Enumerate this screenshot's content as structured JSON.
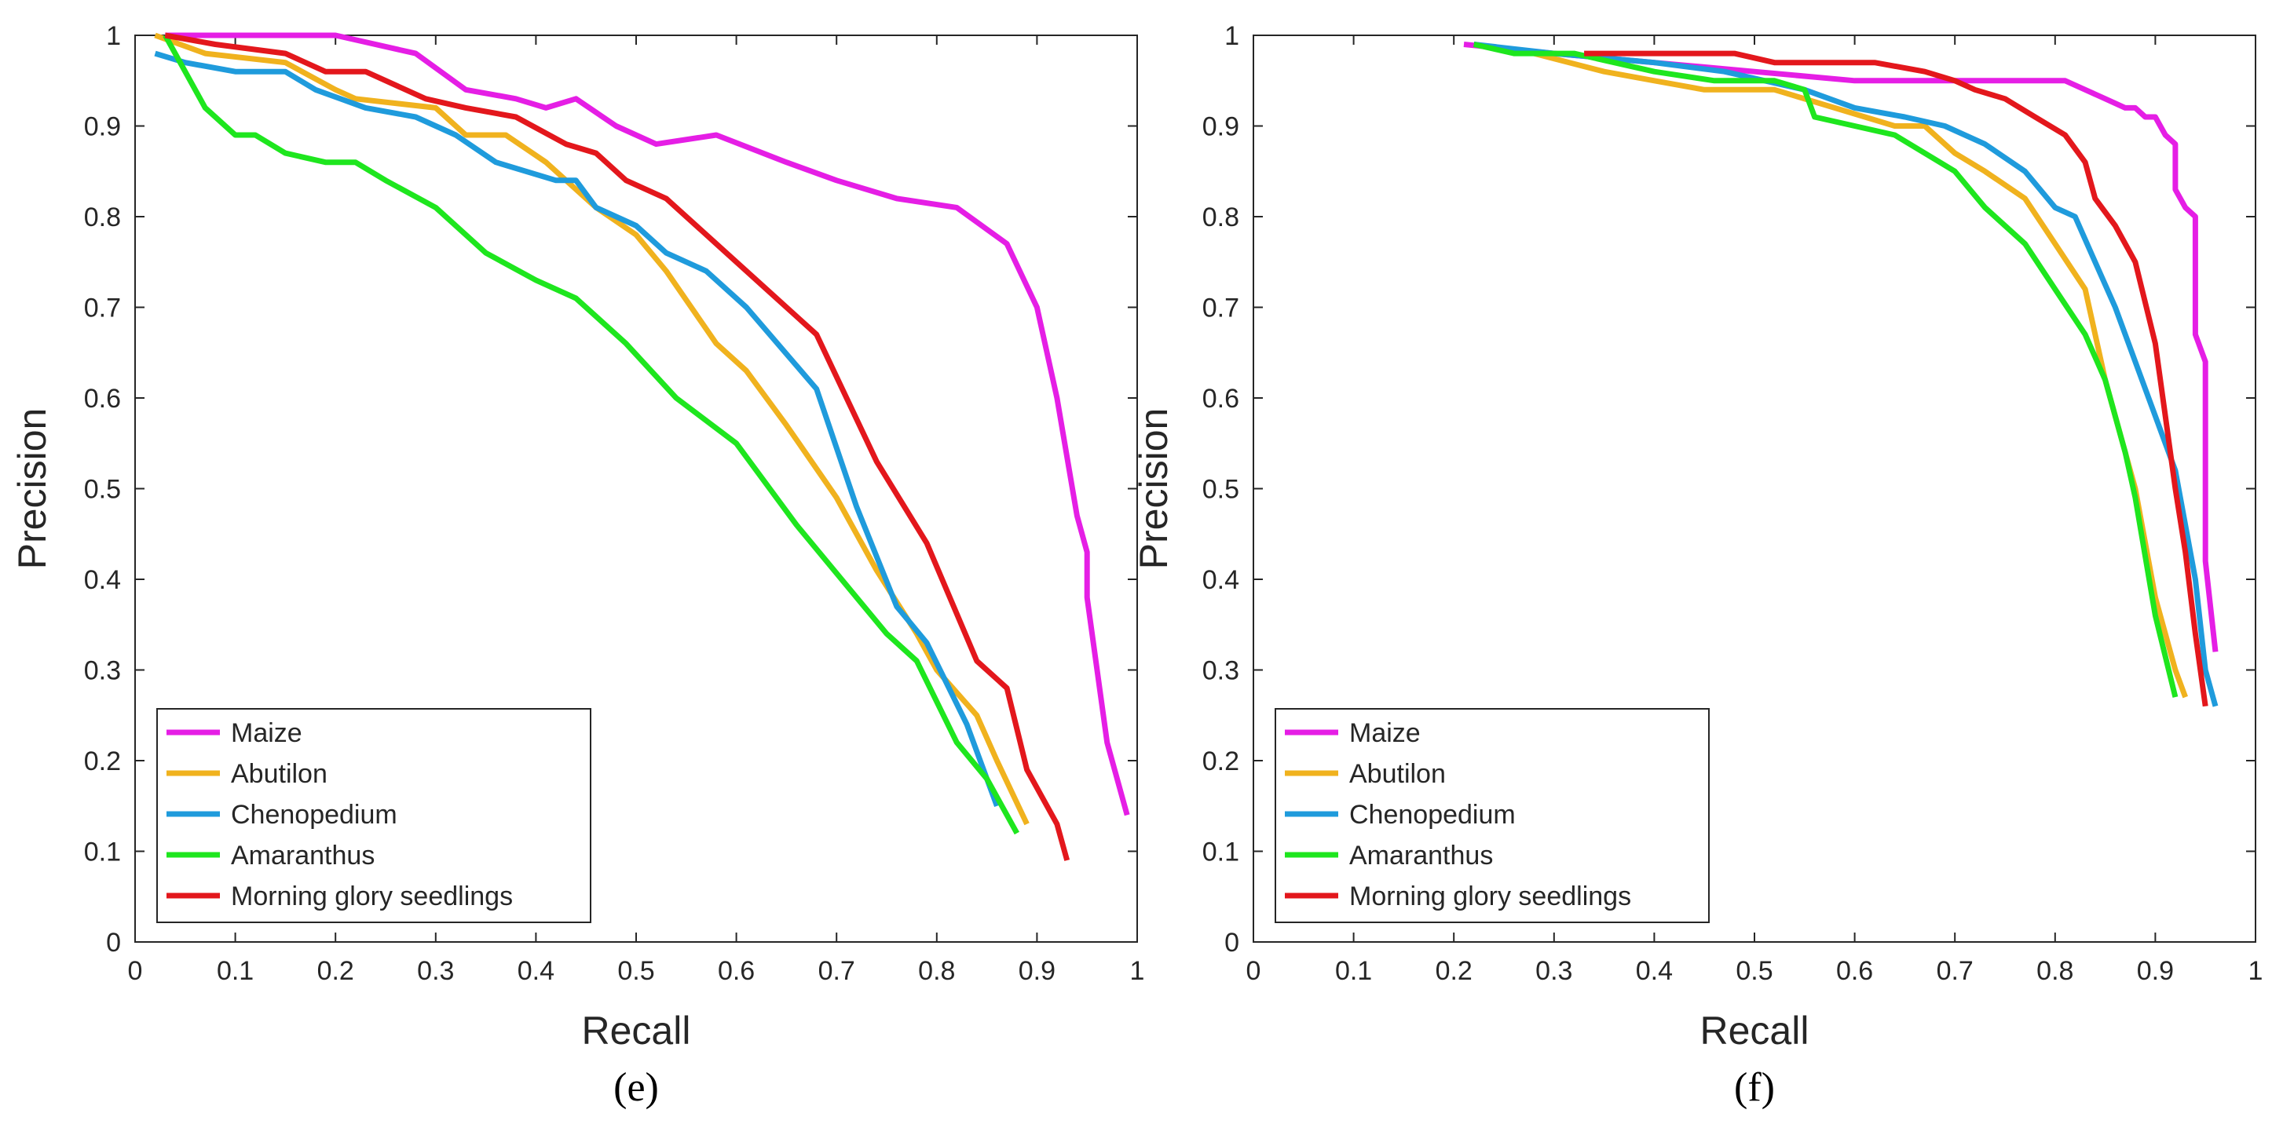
{
  "figure_panels": [
    {
      "caption": "(e)"
    },
    {
      "caption": "(f)"
    }
  ],
  "series_colors": {
    "Maize": "#e51ee5",
    "Abutilon": "#f0b21e",
    "Chenopedium": "#1f9bdc",
    "Amaranthus": "#1ee61e",
    "Morning glory seedlings": "#e3171c"
  },
  "chart_data": [
    {
      "type": "line",
      "title": "",
      "caption": "(e)",
      "xlabel": "Recall",
      "ylabel": "Precision",
      "xlim": [
        0,
        1
      ],
      "ylim": [
        0,
        1
      ],
      "xticks": [
        "0",
        "0.1",
        "0.2",
        "0.3",
        "0.4",
        "0.5",
        "0.6",
        "0.7",
        "0.8",
        "0.9",
        "1"
      ],
      "yticks": [
        "0",
        "0.1",
        "0.2",
        "0.3",
        "0.4",
        "0.5",
        "0.6",
        "0.7",
        "0.8",
        "0.9",
        "1"
      ],
      "grid": false,
      "legend_position": "bottom-left",
      "series": [
        {
          "name": "Maize",
          "color": "#e51ee5",
          "points": [
            [
              0.03,
              1.0
            ],
            [
              0.1,
              1.0
            ],
            [
              0.2,
              1.0
            ],
            [
              0.28,
              0.98
            ],
            [
              0.33,
              0.94
            ],
            [
              0.38,
              0.93
            ],
            [
              0.41,
              0.92
            ],
            [
              0.44,
              0.93
            ],
            [
              0.48,
              0.9
            ],
            [
              0.52,
              0.88
            ],
            [
              0.58,
              0.89
            ],
            [
              0.65,
              0.86
            ],
            [
              0.7,
              0.84
            ],
            [
              0.76,
              0.82
            ],
            [
              0.82,
              0.81
            ],
            [
              0.87,
              0.77
            ],
            [
              0.9,
              0.7
            ],
            [
              0.92,
              0.6
            ],
            [
              0.94,
              0.47
            ],
            [
              0.95,
              0.43
            ],
            [
              0.95,
              0.38
            ],
            [
              0.97,
              0.22
            ],
            [
              0.99,
              0.14
            ]
          ]
        },
        {
          "name": "Abutilon",
          "color": "#f0b21e",
          "points": [
            [
              0.02,
              1.0
            ],
            [
              0.07,
              0.98
            ],
            [
              0.15,
              0.97
            ],
            [
              0.2,
              0.94
            ],
            [
              0.22,
              0.93
            ],
            [
              0.3,
              0.92
            ],
            [
              0.33,
              0.89
            ],
            [
              0.37,
              0.89
            ],
            [
              0.41,
              0.86
            ],
            [
              0.46,
              0.81
            ],
            [
              0.5,
              0.78
            ],
            [
              0.53,
              0.74
            ],
            [
              0.58,
              0.66
            ],
            [
              0.61,
              0.63
            ],
            [
              0.65,
              0.57
            ],
            [
              0.7,
              0.49
            ],
            [
              0.74,
              0.41
            ],
            [
              0.78,
              0.34
            ],
            [
              0.8,
              0.3
            ],
            [
              0.84,
              0.25
            ],
            [
              0.86,
              0.2
            ],
            [
              0.89,
              0.13
            ]
          ]
        },
        {
          "name": "Chenopedium",
          "color": "#1f9bdc",
          "points": [
            [
              0.02,
              0.98
            ],
            [
              0.05,
              0.97
            ],
            [
              0.1,
              0.96
            ],
            [
              0.15,
              0.96
            ],
            [
              0.18,
              0.94
            ],
            [
              0.23,
              0.92
            ],
            [
              0.28,
              0.91
            ],
            [
              0.32,
              0.89
            ],
            [
              0.36,
              0.86
            ],
            [
              0.42,
              0.84
            ],
            [
              0.44,
              0.84
            ],
            [
              0.46,
              0.81
            ],
            [
              0.5,
              0.79
            ],
            [
              0.53,
              0.76
            ],
            [
              0.57,
              0.74
            ],
            [
              0.61,
              0.7
            ],
            [
              0.68,
              0.61
            ],
            [
              0.72,
              0.48
            ],
            [
              0.76,
              0.37
            ],
            [
              0.79,
              0.33
            ],
            [
              0.83,
              0.24
            ],
            [
              0.86,
              0.15
            ]
          ]
        },
        {
          "name": "Amaranthus",
          "color": "#1ee61e",
          "points": [
            [
              0.03,
              1.0
            ],
            [
              0.05,
              0.96
            ],
            [
              0.07,
              0.92
            ],
            [
              0.1,
              0.89
            ],
            [
              0.12,
              0.89
            ],
            [
              0.15,
              0.87
            ],
            [
              0.19,
              0.86
            ],
            [
              0.22,
              0.86
            ],
            [
              0.25,
              0.84
            ],
            [
              0.3,
              0.81
            ],
            [
              0.35,
              0.76
            ],
            [
              0.4,
              0.73
            ],
            [
              0.44,
              0.71
            ],
            [
              0.49,
              0.66
            ],
            [
              0.54,
              0.6
            ],
            [
              0.6,
              0.55
            ],
            [
              0.66,
              0.46
            ],
            [
              0.72,
              0.38
            ],
            [
              0.75,
              0.34
            ],
            [
              0.78,
              0.31
            ],
            [
              0.82,
              0.22
            ],
            [
              0.85,
              0.18
            ],
            [
              0.88,
              0.12
            ]
          ]
        },
        {
          "name": "Morning glory seedlings",
          "color": "#e3171c",
          "points": [
            [
              0.03,
              1.0
            ],
            [
              0.08,
              0.99
            ],
            [
              0.15,
              0.98
            ],
            [
              0.19,
              0.96
            ],
            [
              0.23,
              0.96
            ],
            [
              0.29,
              0.93
            ],
            [
              0.33,
              0.92
            ],
            [
              0.38,
              0.91
            ],
            [
              0.43,
              0.88
            ],
            [
              0.46,
              0.87
            ],
            [
              0.49,
              0.84
            ],
            [
              0.53,
              0.82
            ],
            [
              0.58,
              0.77
            ],
            [
              0.63,
              0.72
            ],
            [
              0.68,
              0.67
            ],
            [
              0.74,
              0.53
            ],
            [
              0.79,
              0.44
            ],
            [
              0.84,
              0.31
            ],
            [
              0.87,
              0.28
            ],
            [
              0.89,
              0.19
            ],
            [
              0.92,
              0.13
            ],
            [
              0.93,
              0.09
            ]
          ]
        }
      ],
      "legend": [
        "Maize",
        "Abutilon",
        "Chenopedium",
        "Amaranthus",
        "Morning glory seedlings"
      ]
    },
    {
      "type": "line",
      "title": "",
      "caption": "(f)",
      "xlabel": "Recall",
      "ylabel": "Precision",
      "xlim": [
        0,
        1
      ],
      "ylim": [
        0,
        1
      ],
      "xticks": [
        "0",
        "0.1",
        "0.2",
        "0.3",
        "0.4",
        "0.5",
        "0.6",
        "0.7",
        "0.8",
        "0.9",
        "1"
      ],
      "yticks": [
        "0",
        "0.1",
        "0.2",
        "0.3",
        "0.4",
        "0.5",
        "0.6",
        "0.7",
        "0.8",
        "0.9",
        "1"
      ],
      "grid": false,
      "legend_position": "bottom-left",
      "series": [
        {
          "name": "Maize",
          "color": "#e51ee5",
          "points": [
            [
              0.21,
              0.99
            ],
            [
              0.3,
              0.98
            ],
            [
              0.4,
              0.97
            ],
            [
              0.5,
              0.96
            ],
            [
              0.6,
              0.95
            ],
            [
              0.7,
              0.95
            ],
            [
              0.76,
              0.95
            ],
            [
              0.81,
              0.95
            ],
            [
              0.83,
              0.94
            ],
            [
              0.85,
              0.93
            ],
            [
              0.87,
              0.92
            ],
            [
              0.88,
              0.92
            ],
            [
              0.89,
              0.91
            ],
            [
              0.9,
              0.91
            ],
            [
              0.91,
              0.89
            ],
            [
              0.92,
              0.88
            ],
            [
              0.92,
              0.83
            ],
            [
              0.93,
              0.81
            ],
            [
              0.94,
              0.8
            ],
            [
              0.94,
              0.67
            ],
            [
              0.95,
              0.64
            ],
            [
              0.95,
              0.42
            ],
            [
              0.96,
              0.32
            ]
          ]
        },
        {
          "name": "Abutilon",
          "color": "#f0b21e",
          "points": [
            [
              0.22,
              0.99
            ],
            [
              0.28,
              0.98
            ],
            [
              0.35,
              0.96
            ],
            [
              0.4,
              0.95
            ],
            [
              0.45,
              0.94
            ],
            [
              0.52,
              0.94
            ],
            [
              0.58,
              0.92
            ],
            [
              0.64,
              0.9
            ],
            [
              0.67,
              0.9
            ],
            [
              0.7,
              0.87
            ],
            [
              0.73,
              0.85
            ],
            [
              0.77,
              0.82
            ],
            [
              0.8,
              0.77
            ],
            [
              0.83,
              0.72
            ],
            [
              0.85,
              0.62
            ],
            [
              0.88,
              0.5
            ],
            [
              0.9,
              0.38
            ],
            [
              0.92,
              0.3
            ],
            [
              0.93,
              0.27
            ]
          ]
        },
        {
          "name": "Chenopedium",
          "color": "#1f9bdc",
          "points": [
            [
              0.22,
              0.99
            ],
            [
              0.3,
              0.98
            ],
            [
              0.4,
              0.97
            ],
            [
              0.47,
              0.96
            ],
            [
              0.55,
              0.94
            ],
            [
              0.6,
              0.92
            ],
            [
              0.65,
              0.91
            ],
            [
              0.69,
              0.9
            ],
            [
              0.73,
              0.88
            ],
            [
              0.77,
              0.85
            ],
            [
              0.8,
              0.81
            ],
            [
              0.82,
              0.8
            ],
            [
              0.84,
              0.75
            ],
            [
              0.86,
              0.7
            ],
            [
              0.88,
              0.64
            ],
            [
              0.9,
              0.58
            ],
            [
              0.92,
              0.52
            ],
            [
              0.94,
              0.4
            ],
            [
              0.95,
              0.3
            ],
            [
              0.96,
              0.26
            ]
          ]
        },
        {
          "name": "Amaranthus",
          "color": "#1ee61e",
          "points": [
            [
              0.22,
              0.99
            ],
            [
              0.26,
              0.98
            ],
            [
              0.32,
              0.98
            ],
            [
              0.4,
              0.96
            ],
            [
              0.46,
              0.95
            ],
            [
              0.52,
              0.95
            ],
            [
              0.55,
              0.94
            ],
            [
              0.56,
              0.91
            ],
            [
              0.6,
              0.9
            ],
            [
              0.64,
              0.89
            ],
            [
              0.67,
              0.87
            ],
            [
              0.7,
              0.85
            ],
            [
              0.73,
              0.81
            ],
            [
              0.77,
              0.77
            ],
            [
              0.8,
              0.72
            ],
            [
              0.83,
              0.67
            ],
            [
              0.85,
              0.62
            ],
            [
              0.87,
              0.54
            ],
            [
              0.88,
              0.49
            ],
            [
              0.9,
              0.36
            ],
            [
              0.92,
              0.27
            ]
          ]
        },
        {
          "name": "Morning glory seedlings",
          "color": "#e3171c",
          "points": [
            [
              0.33,
              0.98
            ],
            [
              0.4,
              0.98
            ],
            [
              0.48,
              0.98
            ],
            [
              0.52,
              0.97
            ],
            [
              0.62,
              0.97
            ],
            [
              0.67,
              0.96
            ],
            [
              0.7,
              0.95
            ],
            [
              0.72,
              0.94
            ],
            [
              0.75,
              0.93
            ],
            [
              0.78,
              0.91
            ],
            [
              0.81,
              0.89
            ],
            [
              0.83,
              0.86
            ],
            [
              0.84,
              0.82
            ],
            [
              0.86,
              0.79
            ],
            [
              0.88,
              0.75
            ],
            [
              0.9,
              0.66
            ],
            [
              0.91,
              0.58
            ],
            [
              0.92,
              0.5
            ],
            [
              0.93,
              0.43
            ],
            [
              0.94,
              0.34
            ],
            [
              0.95,
              0.26
            ]
          ]
        }
      ],
      "legend": [
        "Maize",
        "Abutilon",
        "Chenopedium",
        "Amaranthus",
        "Morning glory seedlings"
      ]
    }
  ]
}
